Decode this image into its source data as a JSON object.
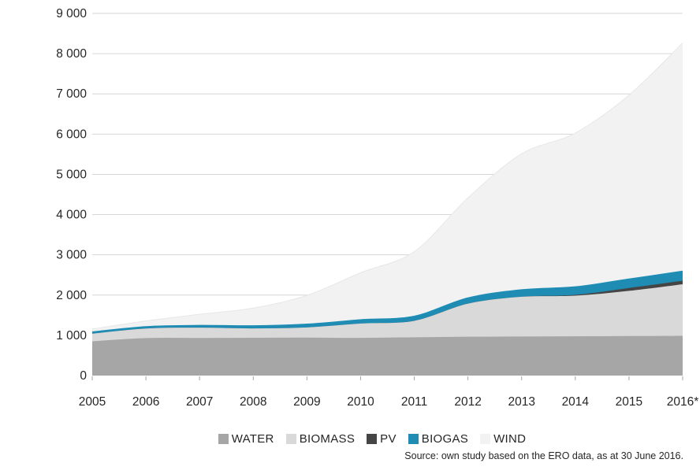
{
  "chart_data": {
    "type": "area",
    "stacked": true,
    "title": "",
    "xlabel": "",
    "ylabel": "",
    "x": [
      "2005",
      "2006",
      "2007",
      "2008",
      "2009",
      "2010",
      "2011",
      "2012",
      "2013",
      "2014",
      "2015",
      "2016*"
    ],
    "series": [
      {
        "name": "WATER",
        "color": "#a6a6a6",
        "values": [
          852,
          931,
          935,
          940,
          945,
          937,
          952,
          966,
          971,
          977,
          982,
          989
        ]
      },
      {
        "name": "BIOMASS",
        "color": "#d9d9d9",
        "values": [
          190,
          238,
          255,
          232,
          252,
          356,
          409,
          821,
          987,
          1008,
          1123,
          1281
        ]
      },
      {
        "name": "PV",
        "color": "#454545",
        "values": [
          0,
          0,
          0,
          0,
          0,
          0,
          1,
          1,
          2,
          21,
          71,
          87
        ]
      },
      {
        "name": "BIOGAS",
        "color": "#1f8cb4",
        "values": [
          32,
          36,
          45,
          54,
          71,
          83,
          103,
          131,
          162,
          188,
          212,
          226
        ]
      },
      {
        "name": "WIND",
        "color": "#f2f2f2",
        "values": [
          83,
          152,
          288,
          451,
          725,
          1180,
          1616,
          2497,
          3389,
          3834,
          4582,
          5682
        ]
      }
    ],
    "ylim": [
      0,
      9000
    ],
    "ytick_values": [
      0,
      1000,
      2000,
      3000,
      4000,
      5000,
      6000,
      7000,
      8000,
      9000
    ],
    "ytick_labels": [
      "0",
      "1 000",
      "2 000",
      "3 000",
      "4 000",
      "5 000",
      "6 000",
      "7 000",
      "8 000",
      "9 000"
    ],
    "grid": true,
    "gridline_color": "#d6d6d6",
    "tick_color": "#a6a6a6",
    "axis_text_color": "#262626",
    "legend_position": "bottom",
    "smooth": true
  },
  "legend": {
    "items": [
      {
        "label": "WATER",
        "color": "#a6a6a6"
      },
      {
        "label": "BIOMASS",
        "color": "#d9d9d9"
      },
      {
        "label": "PV",
        "color": "#454545"
      },
      {
        "label": "BIOGAS",
        "color": "#1f8cb4"
      },
      {
        "label": "WIND",
        "color": "#f2f2f2"
      }
    ]
  },
  "source_note": "Source: own study based on the ERO data, as at 30 June 2016."
}
